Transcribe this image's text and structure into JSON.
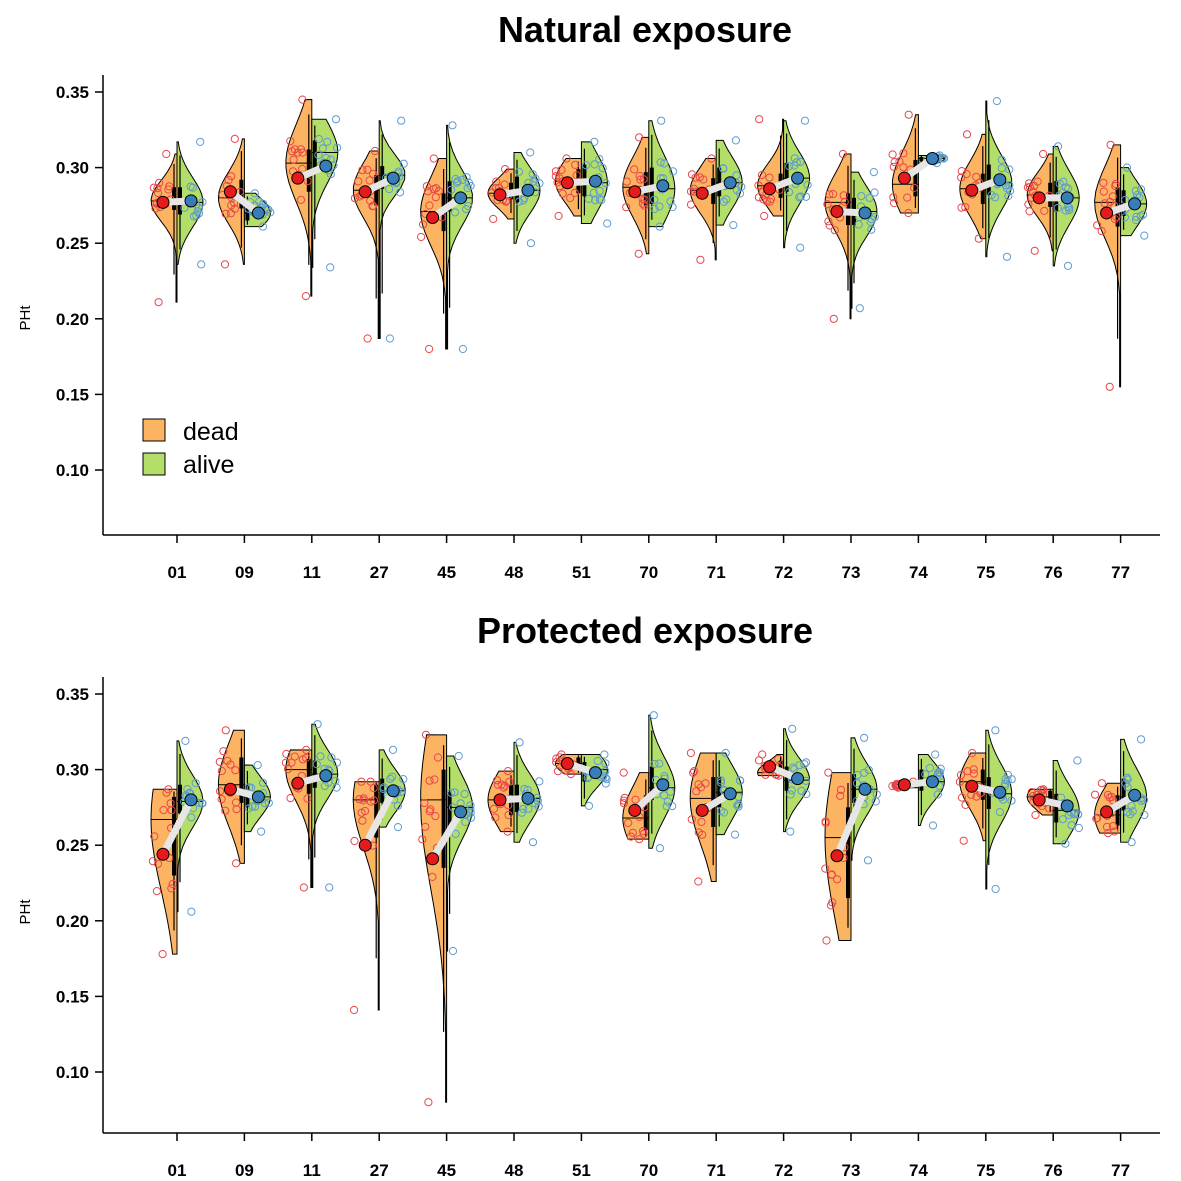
{
  "chart_data": [
    {
      "type": "violin",
      "title": "Natural exposure",
      "xlabel": "",
      "ylabel": "PHt",
      "ylim": [
        0.06,
        0.37
      ],
      "yticks": [
        "0.10",
        "0.15",
        "0.20",
        "0.25",
        "0.30",
        "0.35"
      ],
      "categories": [
        "01",
        "09",
        "11",
        "27",
        "45",
        "48",
        "51",
        "70",
        "71",
        "72",
        "73",
        "74",
        "75",
        "76",
        "77"
      ],
      "legend": {
        "position": "bottom-left",
        "entries": [
          "dead",
          "alive"
        ]
      },
      "series": [
        {
          "name": "dead",
          "color": "#FDB462",
          "point_color": "#E41A1C",
          "mean": [
            0.277,
            0.284,
            0.293,
            0.284,
            0.267,
            0.282,
            0.29,
            0.284,
            0.283,
            0.286,
            0.271,
            0.293,
            0.285,
            0.28,
            0.27
          ],
          "median": [
            0.278,
            0.28,
            0.303,
            0.285,
            0.271,
            0.283,
            0.291,
            0.287,
            0.285,
            0.288,
            0.277,
            0.289,
            0.286,
            0.282,
            0.277
          ],
          "min": [
            0.211,
            0.236,
            0.215,
            0.187,
            0.18,
            0.266,
            0.268,
            0.243,
            0.239,
            0.268,
            0.2,
            0.27,
            0.253,
            0.245,
            0.155
          ],
          "max": [
            0.309,
            0.319,
            0.345,
            0.311,
            0.306,
            0.299,
            0.306,
            0.32,
            0.306,
            0.332,
            0.309,
            0.335,
            0.322,
            0.309,
            0.315
          ],
          "q1": [
            0.272,
            0.273,
            0.284,
            0.275,
            0.258,
            0.279,
            0.283,
            0.275,
            0.276,
            0.28,
            0.262,
            0.281,
            0.276,
            0.274,
            0.261
          ],
          "q3": [
            0.287,
            0.292,
            0.312,
            0.295,
            0.283,
            0.29,
            0.299,
            0.297,
            0.293,
            0.296,
            0.283,
            0.305,
            0.296,
            0.29,
            0.287
          ]
        },
        {
          "name": "alive",
          "color": "#B3DE69",
          "point_color": "#377EB8",
          "mean": [
            0.278,
            0.27,
            0.301,
            0.293,
            0.28,
            0.285,
            0.291,
            0.288,
            0.29,
            0.293,
            0.27,
            0.306,
            0.292,
            0.28,
            0.276
          ],
          "median": [
            0.277,
            0.27,
            0.31,
            0.295,
            0.28,
            0.285,
            0.29,
            0.286,
            0.29,
            0.293,
            0.271,
            0.306,
            0.29,
            0.28,
            0.276
          ],
          "min": [
            0.236,
            0.261,
            0.234,
            0.187,
            0.18,
            0.25,
            0.263,
            0.261,
            0.262,
            0.247,
            0.207,
            0.303,
            0.241,
            0.235,
            0.255
          ],
          "max": [
            0.317,
            0.283,
            0.332,
            0.331,
            0.328,
            0.31,
            0.317,
            0.331,
            0.318,
            0.331,
            0.297,
            0.308,
            0.344,
            0.314,
            0.3
          ],
          "q1": [
            0.269,
            0.265,
            0.296,
            0.286,
            0.271,
            0.277,
            0.281,
            0.276,
            0.281,
            0.284,
            0.262,
            0.304,
            0.282,
            0.271,
            0.268
          ],
          "q3": [
            0.287,
            0.276,
            0.318,
            0.301,
            0.291,
            0.294,
            0.302,
            0.3,
            0.3,
            0.303,
            0.28,
            0.307,
            0.302,
            0.291,
            0.285
          ]
        }
      ]
    },
    {
      "type": "violin",
      "title": "Protected exposure",
      "xlabel": "",
      "ylabel": "PHt",
      "ylim": [
        0.06,
        0.37
      ],
      "yticks": [
        "0.10",
        "0.15",
        "0.20",
        "0.25",
        "0.30",
        "0.35"
      ],
      "categories": [
        "01",
        "09",
        "11",
        "27",
        "45",
        "48",
        "51",
        "70",
        "71",
        "72",
        "73",
        "74",
        "75",
        "76",
        "77"
      ],
      "series": [
        {
          "name": "dead",
          "color": "#FDB462",
          "point_color": "#E41A1C",
          "mean": [
            0.244,
            0.287,
            0.291,
            0.25,
            0.241,
            0.28,
            0.304,
            0.273,
            0.273,
            0.302,
            0.243,
            0.29,
            0.289,
            0.28,
            0.272
          ],
          "median": [
            0.267,
            0.29,
            0.3,
            0.28,
            0.28,
            0.28,
            0.304,
            0.268,
            0.281,
            0.298,
            0.255,
            0.29,
            0.292,
            0.282,
            0.27
          ],
          "min": [
            0.178,
            0.238,
            0.222,
            0.141,
            0.08,
            0.259,
            0.297,
            0.254,
            0.226,
            0.296,
            0.187,
            0.288,
            0.253,
            0.27,
            0.258
          ],
          "max": [
            0.287,
            0.326,
            0.313,
            0.292,
            0.323,
            0.299,
            0.31,
            0.298,
            0.311,
            0.31,
            0.298,
            0.292,
            0.311,
            0.287,
            0.291
          ],
          "q1": [
            0.23,
            0.278,
            0.284,
            0.255,
            0.235,
            0.27,
            0.3,
            0.26,
            0.262,
            0.298,
            0.215,
            0.289,
            0.28,
            0.276,
            0.263
          ],
          "q3": [
            0.282,
            0.308,
            0.307,
            0.29,
            0.3,
            0.29,
            0.308,
            0.283,
            0.295,
            0.306,
            0.275,
            0.291,
            0.3,
            0.286,
            0.283
          ]
        },
        {
          "name": "alive",
          "color": "#B3DE69",
          "point_color": "#377EB8",
          "mean": [
            0.28,
            0.282,
            0.296,
            0.286,
            0.272,
            0.281,
            0.298,
            0.29,
            0.284,
            0.294,
            0.287,
            0.292,
            0.285,
            0.276,
            0.283
          ],
          "median": [
            0.279,
            0.282,
            0.297,
            0.286,
            0.275,
            0.281,
            0.3,
            0.288,
            0.285,
            0.293,
            0.287,
            0.292,
            0.284,
            0.273,
            0.282
          ],
          "min": [
            0.206,
            0.259,
            0.222,
            0.262,
            0.18,
            0.252,
            0.276,
            0.248,
            0.257,
            0.259,
            0.24,
            0.263,
            0.221,
            0.251,
            0.252
          ],
          "max": [
            0.319,
            0.303,
            0.33,
            0.313,
            0.309,
            0.318,
            0.31,
            0.336,
            0.311,
            0.327,
            0.321,
            0.31,
            0.326,
            0.306,
            0.32
          ],
          "q1": [
            0.271,
            0.275,
            0.288,
            0.278,
            0.262,
            0.272,
            0.292,
            0.28,
            0.275,
            0.286,
            0.278,
            0.286,
            0.274,
            0.265,
            0.273
          ],
          "q3": [
            0.29,
            0.29,
            0.306,
            0.294,
            0.285,
            0.29,
            0.305,
            0.302,
            0.295,
            0.302,
            0.297,
            0.3,
            0.295,
            0.284,
            0.294
          ]
        }
      ]
    }
  ]
}
